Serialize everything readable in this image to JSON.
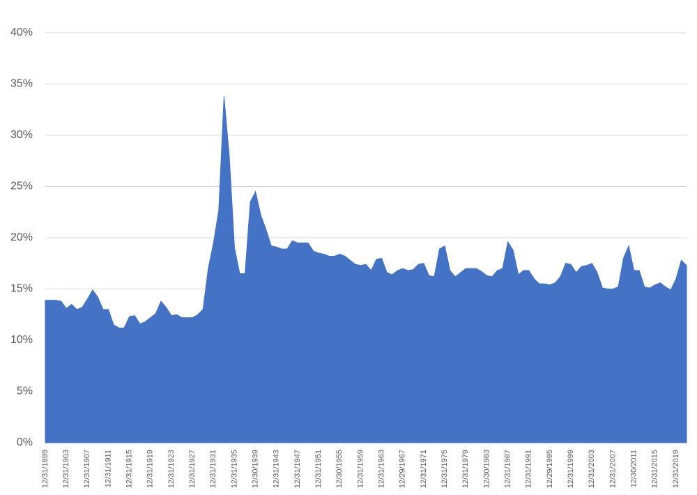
{
  "chart_data": {
    "type": "area",
    "color": "#4472c4",
    "grid": true,
    "categories": [
      "12/31/1899",
      null,
      null,
      null,
      "12/31/1903",
      null,
      null,
      null,
      "12/31/1907",
      null,
      null,
      null,
      "12/31/1911",
      null,
      null,
      null,
      "12/31/1915",
      null,
      null,
      null,
      "12/31/1919",
      null,
      null,
      null,
      "12/31/1923",
      null,
      null,
      null,
      "12/31/1927",
      null,
      null,
      null,
      "12/31/1931",
      null,
      null,
      null,
      "12/31/1935",
      null,
      null,
      null,
      "12/30/1939",
      null,
      null,
      null,
      "12/31/1943",
      null,
      null,
      null,
      "12/31/1947",
      null,
      null,
      null,
      "12/31/1951",
      null,
      null,
      null,
      "12/30/1955",
      null,
      null,
      null,
      "12/31/1959",
      null,
      null,
      null,
      "12/31/1963",
      null,
      null,
      null,
      "12/29/1967",
      null,
      null,
      null,
      "12/31/1971",
      null,
      null,
      null,
      "12/31/1975",
      null,
      null,
      null,
      "12/31/1979",
      null,
      null,
      null,
      "12/30/1983",
      null,
      null,
      null,
      "12/31/1987",
      null,
      null,
      null,
      "12/31/1991",
      null,
      null,
      null,
      "12/29/1995",
      null,
      null,
      null,
      "12/31/1999",
      null,
      null,
      null,
      "12/31/2003",
      null,
      null,
      null,
      "12/31/2007",
      null,
      null,
      null,
      "12/30/2011",
      null,
      null,
      null,
      "12/31/2015",
      null,
      null,
      null,
      "12/31/2019",
      null,
      null
    ],
    "values": [
      13.9,
      13.9,
      13.9,
      13.8,
      13.1,
      13.5,
      13.0,
      13.2,
      14.0,
      14.9,
      14.2,
      13.0,
      13.0,
      11.5,
      11.2,
      11.2,
      12.3,
      12.4,
      11.6,
      11.8,
      12.2,
      12.6,
      13.8,
      13.2,
      12.4,
      12.5,
      12.2,
      12.2,
      12.2,
      12.5,
      13.0,
      17.0,
      19.5,
      22.7,
      33.8,
      28,
      19,
      16.5,
      16.5,
      23.5,
      24.5,
      22.2,
      20.8,
      19.2,
      19.1,
      18.9,
      18.9,
      19.7,
      19.5,
      19.5,
      19.5,
      18.7,
      18.5,
      18.4,
      18.2,
      18.2,
      18.4,
      18.2,
      17.8,
      17.4,
      17.3,
      17.4,
      16.8,
      17.9,
      18.0,
      16.6,
      16.4,
      16.8,
      17.0,
      16.8,
      16.9,
      17.4,
      17.5,
      16.3,
      16.2,
      18.9,
      19.2,
      16.8,
      16.2,
      16.6,
      17.0,
      17.0,
      17.0,
      16.7,
      16.3,
      16.2,
      16.8,
      17.0,
      19.6,
      18.8,
      16.4,
      16.8,
      16.8,
      16.0,
      15.5,
      15.5,
      15.4,
      15.6,
      16.2,
      17.5,
      17.4,
      16.6,
      17.2,
      17.3,
      17.5,
      16.6,
      15.1,
      15.0,
      15.0,
      15.2,
      18.0,
      19.2,
      16.8,
      16.8,
      15.2,
      15.1,
      15.4,
      15.6,
      15.2,
      14.9,
      16.0,
      17.8,
      17.3
    ],
    "ylim": [
      0,
      40
    ],
    "yticks": [
      {
        "value": 0,
        "label": "0%"
      },
      {
        "value": 5,
        "label": "5%"
      },
      {
        "value": 10,
        "label": "10%"
      },
      {
        "value": 15,
        "label": "15%"
      },
      {
        "value": 20,
        "label": "20%"
      },
      {
        "value": 25,
        "label": "25%"
      },
      {
        "value": 30,
        "label": "30%"
      },
      {
        "value": 35,
        "label": "35%"
      },
      {
        "value": 40,
        "label": "40%"
      }
    ]
  }
}
